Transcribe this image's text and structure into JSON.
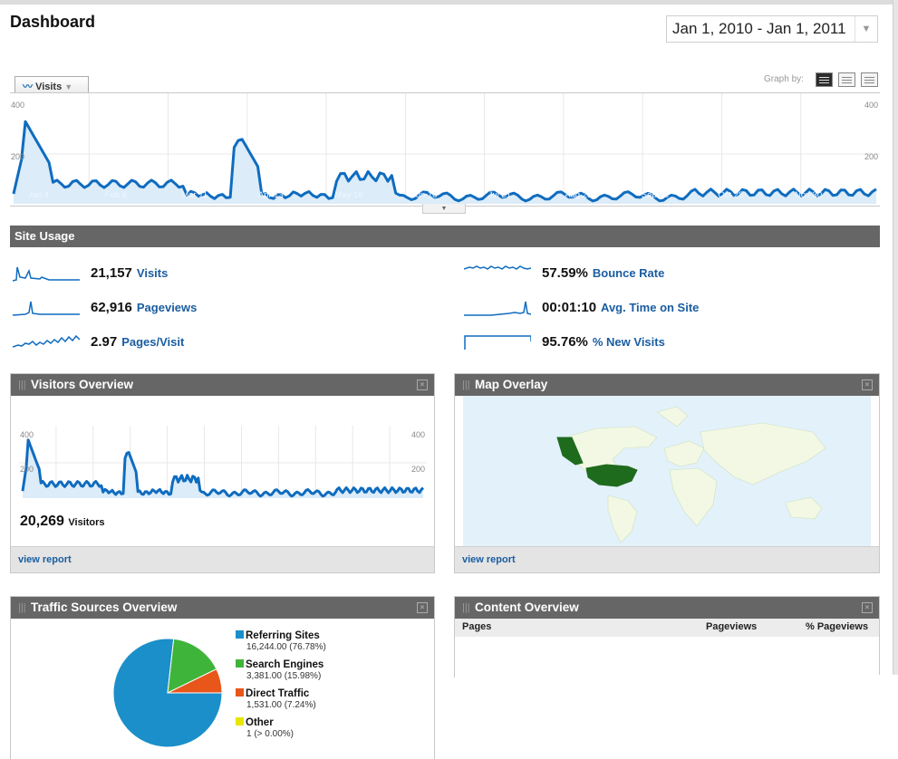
{
  "page": {
    "title": "Dashboard",
    "date_range": "Jan 1, 2010 - Jan 1, 2011"
  },
  "main_graph": {
    "metric_tab": "Visits",
    "graph_by_label": "Graph by:",
    "y_axis_ticks": [
      "400",
      "200"
    ],
    "x_axis_ticks": [
      "Jan 4",
      "Feb 6",
      "Mar 11",
      "Apr 13",
      "May 16",
      "Jun 18",
      "Jul 21",
      "Aug 23",
      "Sep 25",
      "Oct 28",
      "Nov 30"
    ]
  },
  "site_usage": {
    "title": "Site Usage",
    "metrics": [
      {
        "value": "21,157",
        "label": "Visits"
      },
      {
        "value": "62,916",
        "label": "Pageviews"
      },
      {
        "value": "2.97",
        "label": "Pages/Visit"
      },
      {
        "value": "57.59%",
        "label": "Bounce Rate"
      },
      {
        "value": "00:01:10",
        "label": "Avg. Time on Site"
      },
      {
        "value": "95.76%",
        "label": "% New Visits"
      }
    ]
  },
  "visitors_overview": {
    "title": "Visitors Overview",
    "y_ticks": [
      "400",
      "200"
    ],
    "visitors_value": "20,269",
    "visitors_label": "Visitors",
    "footer_link": "view report"
  },
  "map_overlay": {
    "title": "Map Overlay",
    "footer_link": "view report"
  },
  "traffic_sources": {
    "title": "Traffic Sources Overview",
    "slices": [
      {
        "name": "Referring Sites",
        "value": "16,244.00 (76.78%)",
        "fraction": 0.7678,
        "color": "#1b8fc9"
      },
      {
        "name": "Search Engines",
        "value": "3,381.00 (15.98%)",
        "fraction": 0.1598,
        "color": "#3fb43a"
      },
      {
        "name": "Direct Traffic",
        "value": "1,531.00 (7.24%)",
        "fraction": 0.0724,
        "color": "#e9561a"
      },
      {
        "name": "Other",
        "value": "1 (> 0.00%)",
        "fraction": 0.0,
        "color": "#e8e600"
      }
    ]
  },
  "content_overview": {
    "title": "Content Overview",
    "columns": [
      "Pages",
      "Pageviews",
      "% Pageviews"
    ]
  },
  "colors": {
    "accent_line": "#0f6cbf",
    "area_fill": "#dcecf8",
    "header_bar": "#666666",
    "link": "#1a5da1"
  }
}
